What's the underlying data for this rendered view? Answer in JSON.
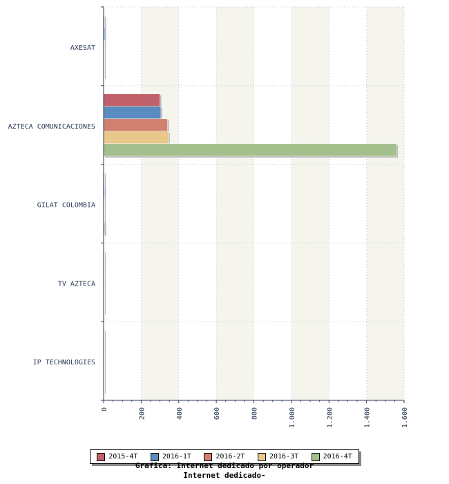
{
  "chart_data": {
    "type": "bar",
    "orientation": "horizontal",
    "title": "Grafica: Internet dedicado por operador",
    "subtitle": "Internet dedicado-",
    "categories": [
      "AXESAT",
      "AZTECA COMUNICACIONES",
      "GILAT COLOMBIA",
      "TV AZTECA",
      "IP TECHNOLOGIES"
    ],
    "series": [
      {
        "name": "2015-4T",
        "color": "#c0606a",
        "values": [
          5,
          300,
          4,
          2,
          1
        ]
      },
      {
        "name": "2016-1T",
        "color": "#5b8cc0",
        "values": [
          6,
          305,
          5,
          2,
          1
        ]
      },
      {
        "name": "2016-2T",
        "color": "#d08070",
        "values": [
          3,
          340,
          3,
          1,
          1
        ]
      },
      {
        "name": "2016-3T",
        "color": "#e8c98a",
        "values": [
          2,
          345,
          3,
          1,
          1
        ]
      },
      {
        "name": "2016-4T",
        "color": "#a3bf8c",
        "values": [
          2,
          1560,
          6,
          1,
          1
        ]
      }
    ],
    "x_ticks": [
      "0",
      "200",
      "400",
      "600",
      "800",
      "1.000",
      "1.200",
      "1.400",
      "1.600"
    ],
    "xlim": [
      0,
      1600
    ],
    "grid": true,
    "legend_position": "bottom"
  }
}
